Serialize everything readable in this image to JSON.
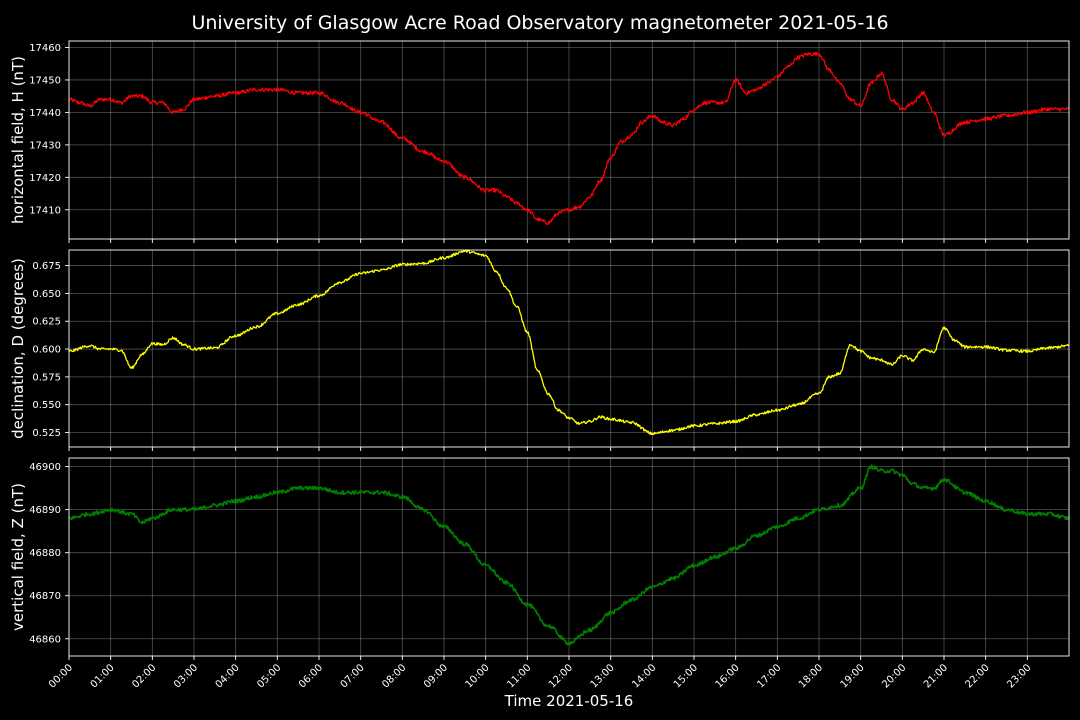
{
  "chart_data": {
    "type": "line",
    "title": "University of Glasgow Acre Road Observatory magnetometer 2021-05-16",
    "xlabel": "Time 2021-05-16",
    "x_ticks": [
      "00:00",
      "01:00",
      "02:00",
      "03:00",
      "04:00",
      "05:00",
      "06:00",
      "07:00",
      "08:00",
      "09:00",
      "10:00",
      "11:00",
      "12:00",
      "13:00",
      "14:00",
      "15:00",
      "16:00",
      "17:00",
      "18:00",
      "19:00",
      "20:00",
      "21:00",
      "22:00",
      "23:00"
    ],
    "x_unit": "hours",
    "xlim": [
      0,
      24
    ],
    "grid": true,
    "panels": [
      {
        "name": "H",
        "ylabel": "horizontal field, H (nT)",
        "color": "#ff0000",
        "ylim": [
          17401,
          17462
        ],
        "yticks": [
          17410,
          17420,
          17430,
          17440,
          17450,
          17460
        ],
        "tick_format": "int",
        "noise": 0.6,
        "x": [
          0,
          0.25,
          0.5,
          0.75,
          1,
          1.25,
          1.5,
          1.75,
          2,
          2.25,
          2.5,
          2.75,
          3,
          3.5,
          4,
          4.5,
          5,
          5.5,
          6,
          6.5,
          7,
          7.5,
          8,
          8.5,
          9,
          9.5,
          10,
          10.25,
          10.5,
          10.75,
          11,
          11.25,
          11.5,
          11.75,
          12,
          12.25,
          12.5,
          12.75,
          13,
          13.25,
          13.5,
          13.75,
          14,
          14.25,
          14.5,
          14.75,
          15,
          15.25,
          15.5,
          15.75,
          16,
          16.25,
          16.5,
          16.75,
          17,
          17.25,
          17.5,
          17.75,
          18,
          18.25,
          18.5,
          18.75,
          19,
          19.25,
          19.5,
          19.75,
          20,
          20.25,
          20.5,
          20.75,
          21,
          21.5,
          22,
          22.5,
          23,
          23.5,
          24
        ],
        "y": [
          17444,
          17443,
          17442,
          17444,
          17444,
          17443,
          17445,
          17445,
          17443,
          17443,
          17440,
          17441,
          17444,
          17445,
          17446,
          17447,
          17447,
          17446,
          17446,
          17443,
          17440,
          17437,
          17432,
          17428,
          17425,
          17420,
          17416,
          17416,
          17414,
          17412,
          17410,
          17407,
          17406,
          17409,
          17410,
          17411,
          17414,
          17419,
          17426,
          17431,
          17433,
          17437,
          17439,
          17437,
          17436,
          17438,
          17441,
          17443,
          17443,
          17443,
          17450,
          17446,
          17447,
          17449,
          17451,
          17454,
          17457,
          17458,
          17458,
          17453,
          17449,
          17444,
          17442,
          17449,
          17452,
          17444,
          17441,
          17443,
          17446,
          17440,
          17433,
          17437,
          17438,
          17439,
          17440,
          17441,
          17441
        ]
      },
      {
        "name": "D",
        "ylabel": "declination, D (degrees)",
        "color": "#ffff00",
        "ylim": [
          0.512,
          0.689
        ],
        "yticks": [
          0.525,
          0.55,
          0.575,
          0.6,
          0.625,
          0.65,
          0.675
        ],
        "tick_format": "3dp",
        "noise": 0.0012,
        "x": [
          0,
          0.5,
          0.75,
          1,
          1.25,
          1.5,
          1.75,
          2,
          2.25,
          2.5,
          2.75,
          3,
          3.5,
          4,
          4.5,
          5,
          5.5,
          6,
          6.5,
          7,
          7.5,
          8,
          8.5,
          9,
          9.5,
          10,
          10.25,
          10.5,
          10.75,
          11,
          11.25,
          11.5,
          11.75,
          12,
          12.25,
          12.5,
          12.75,
          13,
          13.5,
          14,
          14.5,
          15,
          15.5,
          16,
          16.5,
          17,
          17.5,
          18,
          18.25,
          18.5,
          18.75,
          19,
          19.25,
          19.5,
          19.75,
          20,
          20.25,
          20.5,
          20.75,
          21,
          21.25,
          21.5,
          22,
          22.5,
          23,
          23.5,
          24
        ],
        "y": [
          0.598,
          0.603,
          0.6,
          0.6,
          0.599,
          0.583,
          0.595,
          0.605,
          0.604,
          0.61,
          0.604,
          0.6,
          0.601,
          0.612,
          0.62,
          0.632,
          0.64,
          0.648,
          0.66,
          0.668,
          0.671,
          0.676,
          0.677,
          0.682,
          0.688,
          0.684,
          0.67,
          0.655,
          0.638,
          0.615,
          0.58,
          0.56,
          0.545,
          0.538,
          0.533,
          0.535,
          0.539,
          0.537,
          0.534,
          0.524,
          0.527,
          0.531,
          0.533,
          0.535,
          0.541,
          0.545,
          0.55,
          0.56,
          0.575,
          0.578,
          0.604,
          0.598,
          0.592,
          0.59,
          0.586,
          0.594,
          0.59,
          0.6,
          0.597,
          0.619,
          0.608,
          0.602,
          0.602,
          0.599,
          0.598,
          0.601,
          0.603
        ]
      },
      {
        "name": "Z",
        "ylabel": "vertical field, Z (nT)",
        "color": "#008000",
        "ylim": [
          46856,
          46902
        ],
        "yticks": [
          46860,
          46870,
          46880,
          46890,
          46900
        ],
        "tick_format": "int",
        "noise": 0.45,
        "x": [
          0,
          0.5,
          1,
          1.5,
          1.75,
          2,
          2.5,
          3,
          3.5,
          4,
          4.5,
          5,
          5.5,
          6,
          6.5,
          7,
          7.5,
          8,
          8.5,
          9,
          9.5,
          10,
          10.5,
          11,
          11.5,
          12,
          12.5,
          13,
          13.5,
          14,
          14.5,
          15,
          15.5,
          16,
          16.5,
          17,
          17.5,
          18,
          18.5,
          19,
          19.25,
          19.5,
          19.75,
          20,
          20.25,
          20.5,
          20.75,
          21,
          21.5,
          22,
          22.5,
          23,
          23.5,
          24
        ],
        "y": [
          46888,
          46889,
          46890,
          46889,
          46887,
          46888,
          46890,
          46890,
          46891,
          46892,
          46893,
          46894,
          46895,
          46895,
          46894,
          46894,
          46894,
          46893,
          46890,
          46886,
          46882,
          46877,
          46873,
          46868,
          46863,
          46859,
          46862,
          46866,
          46869,
          46872,
          46874,
          46877,
          46879,
          46881,
          46884,
          46886,
          46888,
          46890,
          46891,
          46895,
          46900,
          46899,
          46899,
          46898,
          46896,
          46895,
          46895,
          46897,
          46894,
          46892,
          46890,
          46889,
          46889,
          46888
        ]
      }
    ]
  }
}
